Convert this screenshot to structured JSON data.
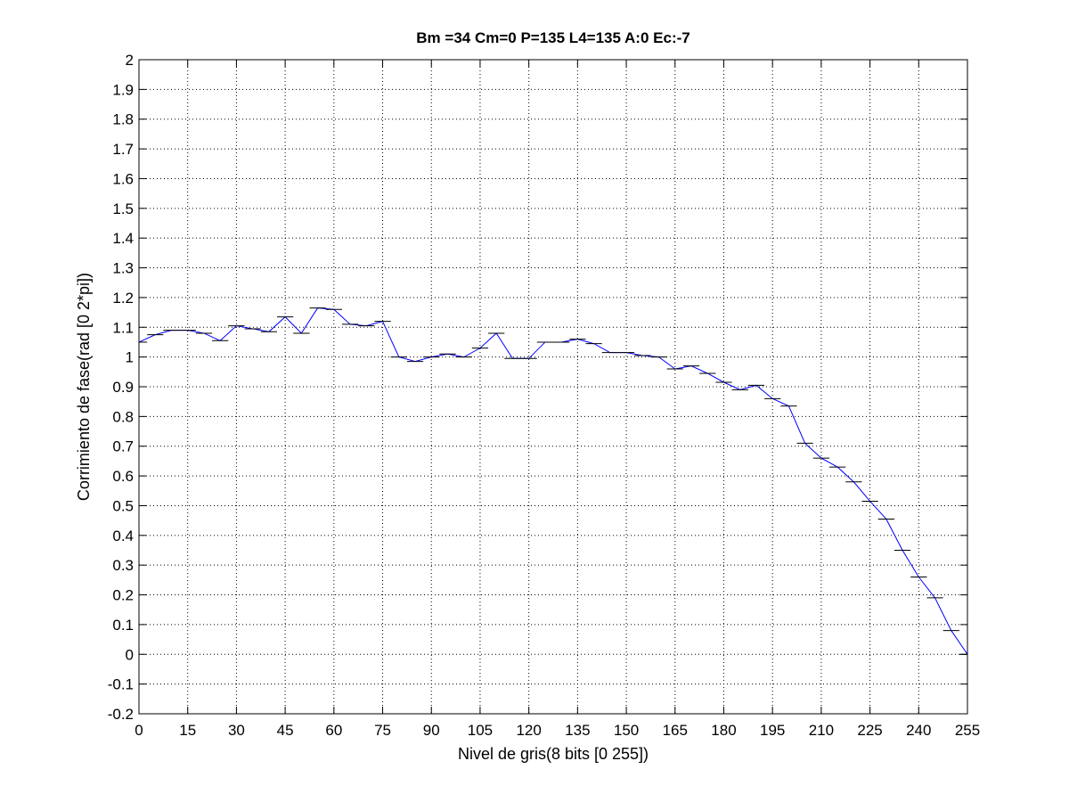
{
  "chart_data": {
    "type": "line",
    "title": "Bm =34  Cm=0  P=135  L4=135  A:0  Ec:-7",
    "xlabel": "Nivel de gris(8 bits [0 255])",
    "ylabel": "Corrimiento de fase(rad [0 2*pi])",
    "xlim": [
      0,
      255
    ],
    "ylim": [
      -0.2,
      2
    ],
    "xticks": [
      "0",
      "15",
      "30",
      "45",
      "60",
      "75",
      "90",
      "105",
      "120",
      "135",
      "150",
      "165",
      "180",
      "195",
      "210",
      "225",
      "240",
      "255"
    ],
    "yticks": [
      "-0.2",
      "-0.1",
      "0",
      "0.1",
      "0.2",
      "0.3",
      "0.4",
      "0.5",
      "0.6",
      "0.7",
      "0.8",
      "0.9",
      "1",
      "1.1",
      "1.2",
      "1.3",
      "1.4",
      "1.5",
      "1.6",
      "1.7",
      "1.8",
      "1.9",
      "2"
    ],
    "grid": true,
    "line_color": "#0000ff",
    "errorbar_halfwidth_x": 2.5,
    "series": [
      {
        "x": [
          0,
          5,
          10,
          15,
          20,
          25,
          30,
          35,
          40,
          45,
          50,
          55,
          60,
          65,
          70,
          75,
          80,
          85,
          90,
          95,
          100,
          105,
          110,
          115,
          120,
          125,
          130,
          135,
          140,
          145,
          150,
          155,
          160,
          165,
          170,
          175,
          180,
          185,
          190,
          195,
          200,
          205,
          210,
          215,
          220,
          225,
          230,
          235,
          240,
          245,
          250,
          255
        ],
        "y": [
          1.05,
          1.075,
          1.09,
          1.09,
          1.08,
          1.055,
          1.105,
          1.095,
          1.085,
          1.135,
          1.08,
          1.165,
          1.16,
          1.11,
          1.105,
          1.12,
          1.0,
          0.985,
          1.0,
          1.01,
          1.0,
          1.03,
          1.08,
          0.995,
          0.995,
          1.05,
          1.05,
          1.06,
          1.045,
          1.015,
          1.015,
          1.005,
          1.0,
          0.96,
          0.97,
          0.945,
          0.915,
          0.89,
          0.905,
          0.86,
          0.835,
          0.71,
          0.66,
          0.63,
          0.58,
          0.515,
          0.455,
          0.35,
          0.26,
          0.19,
          0.08,
          0.0
        ]
      }
    ]
  }
}
